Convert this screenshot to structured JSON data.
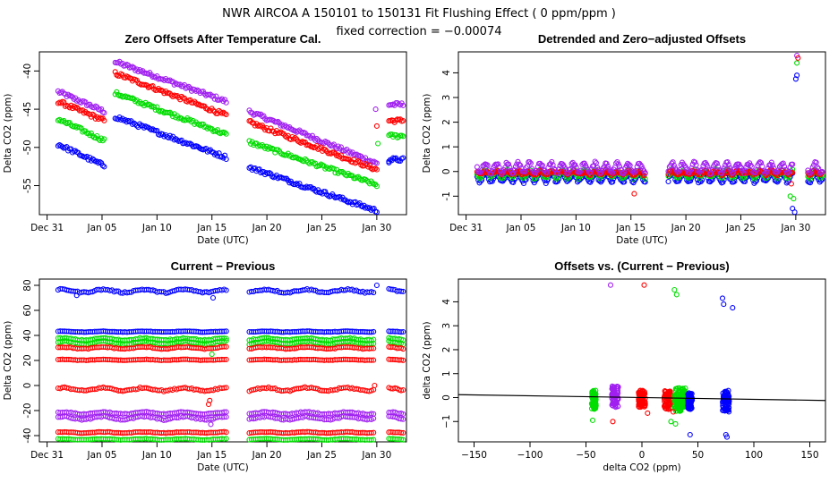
{
  "header": {
    "title": "NWR   AIRCOA A   150101 to 150131   Fit Flushing Effect ( 0 ppm/ppm )",
    "subtitle": "fixed correction = −0.00074"
  },
  "colors": {
    "blue": "#0000ff",
    "red": "#ff0000",
    "green": "#00dd00",
    "purple": "#a020f0",
    "black": "#000000"
  },
  "chart_data": [
    {
      "id": "zero_offsets",
      "type": "scatter",
      "title": "Zero Offsets After Temperature Cal.",
      "xlabel": "Date (UTC)",
      "ylabel": "Delta CO2 (ppm)",
      "xlim": [
        -1.2,
        32.2
      ],
      "ylim": [
        -58.8,
        -37.5
      ],
      "xticks": [
        {
          "v": -0.5,
          "label": "Dec 31"
        },
        {
          "v": 4.5,
          "label": "Jan 05"
        },
        {
          "v": 9.5,
          "label": "Jan 10"
        },
        {
          "v": 14.5,
          "label": "Jan 15"
        },
        {
          "v": 19.5,
          "label": "Jan 20"
        },
        {
          "v": 24.5,
          "label": "Jan 25"
        },
        {
          "v": 29.5,
          "label": "Jan 30"
        }
      ],
      "yticks": [
        {
          "v": -40,
          "label": "-40"
        },
        {
          "v": -45,
          "label": "-45"
        },
        {
          "v": -50,
          "label": "-50"
        },
        {
          "v": -55,
          "label": "-55"
        }
      ],
      "series": [
        {
          "name": "purple",
          "color": "purple",
          "segments": [
            [
              0.5,
              4.7,
              -42.7,
              -45.3
            ],
            [
              5.7,
              15.8,
              -38.8,
              -44.0
            ],
            [
              17.9,
              29.5,
              -45.3,
              -52.1
            ],
            [
              30.6,
              31.9,
              -44.4,
              -44.4
            ]
          ]
        },
        {
          "name": "red",
          "color": "red",
          "segments": [
            [
              0.5,
              4.7,
              -44.0,
              -46.5
            ],
            [
              5.7,
              15.8,
              -40.3,
              -45.8
            ],
            [
              17.9,
              29.5,
              -46.7,
              -52.9
            ],
            [
              30.6,
              31.9,
              -46.5,
              -46.5
            ]
          ]
        },
        {
          "name": "green",
          "color": "green",
          "segments": [
            [
              0.5,
              4.7,
              -46.3,
              -49.1
            ],
            [
              5.7,
              15.8,
              -42.9,
              -48.3
            ],
            [
              17.9,
              29.5,
              -49.3,
              -54.9
            ],
            [
              30.6,
              31.9,
              -48.5,
              -48.5
            ]
          ]
        },
        {
          "name": "blue",
          "color": "blue",
          "segments": [
            [
              0.5,
              4.7,
              -49.6,
              -52.4
            ],
            [
              5.7,
              15.8,
              -46.0,
              -51.3
            ],
            [
              17.9,
              29.5,
              -52.6,
              -58.3
            ],
            [
              30.6,
              31.9,
              -51.6,
              -51.6
            ]
          ]
        }
      ],
      "outliers": [
        {
          "color": "purple",
          "x": 29.4,
          "y": -45.0
        },
        {
          "color": "red",
          "x": 29.5,
          "y": -47.2
        },
        {
          "color": "green",
          "x": 29.6,
          "y": -49.5
        },
        {
          "color": "blue",
          "x": 30.6,
          "y": -52.0
        }
      ]
    },
    {
      "id": "detrended",
      "type": "scatter",
      "title": "Detrended and Zero−adjusted Offsets",
      "xlabel": "Date (UTC)",
      "ylabel": "Delta CO2 (ppm)",
      "xlim": [
        -1.2,
        32.2
      ],
      "ylim": [
        -1.75,
        4.85
      ],
      "xticks": [
        {
          "v": -0.5,
          "label": "Dec 31"
        },
        {
          "v": 4.5,
          "label": "Jan 05"
        },
        {
          "v": 9.5,
          "label": "Jan 10"
        },
        {
          "v": 14.5,
          "label": "Jan 15"
        },
        {
          "v": 19.5,
          "label": "Jan 20"
        },
        {
          "v": 24.5,
          "label": "Jan 25"
        },
        {
          "v": 29.5,
          "label": "Jan 30"
        }
      ],
      "yticks": [
        {
          "v": -1,
          "label": "-1"
        },
        {
          "v": 0,
          "label": "0"
        },
        {
          "v": 1,
          "label": "1"
        },
        {
          "v": 2,
          "label": "2"
        },
        {
          "v": 3,
          "label": "3"
        },
        {
          "v": 4,
          "label": "4"
        }
      ],
      "ranges": [
        [
          0.5,
          15.8
        ],
        [
          17.9,
          29.2
        ],
        [
          30.6,
          31.9
        ]
      ],
      "series": [
        {
          "name": "blue",
          "color": "blue",
          "base": -0.25,
          "amp": 0.18
        },
        {
          "name": "green",
          "color": "green",
          "base": -0.1,
          "amp": 0.15
        },
        {
          "name": "red",
          "color": "red",
          "base": -0.05,
          "amp": 0.06
        },
        {
          "name": "purple",
          "color": "purple",
          "base": 0.15,
          "amp": 0.2
        }
      ],
      "outliers": [
        {
          "color": "purple",
          "x": 29.6,
          "y": 4.7
        },
        {
          "color": "green",
          "x": 29.6,
          "y": 4.4
        },
        {
          "color": "red",
          "x": 29.7,
          "y": 4.6
        },
        {
          "color": "blue",
          "x": 29.6,
          "y": 3.9
        },
        {
          "color": "blue",
          "x": 29.5,
          "y": 3.75
        },
        {
          "color": "blue",
          "x": 29.2,
          "y": -1.5
        },
        {
          "color": "blue",
          "x": 29.4,
          "y": -1.65
        },
        {
          "color": "green",
          "x": 29.0,
          "y": -1.0
        },
        {
          "color": "green",
          "x": 29.3,
          "y": -1.1
        },
        {
          "color": "red",
          "x": 14.8,
          "y": -0.9
        },
        {
          "color": "red",
          "x": 29.1,
          "y": -0.5
        }
      ]
    },
    {
      "id": "current_previous",
      "type": "scatter",
      "title": "Current − Previous",
      "xlabel": "Date (UTC)",
      "ylabel": "Delta CO2 (ppm)",
      "xlim": [
        -1.2,
        32.2
      ],
      "ylim": [
        -45,
        85
      ],
      "xticks": [
        {
          "v": -0.5,
          "label": "Dec 31"
        },
        {
          "v": 4.5,
          "label": "Jan 05"
        },
        {
          "v": 9.5,
          "label": "Jan 10"
        },
        {
          "v": 14.5,
          "label": "Jan 15"
        },
        {
          "v": 19.5,
          "label": "Jan 20"
        },
        {
          "v": 24.5,
          "label": "Jan 25"
        },
        {
          "v": 29.5,
          "label": "Jan 30"
        }
      ],
      "yticks": [
        {
          "v": 80,
          "label": "80"
        },
        {
          "v": 60,
          "label": "60"
        },
        {
          "v": 40,
          "label": "40"
        },
        {
          "v": 20,
          "label": "20"
        },
        {
          "v": 0,
          "label": "0"
        },
        {
          "v": -20,
          "label": "-20"
        },
        {
          "v": -40,
          "label": "-40"
        }
      ],
      "ranges": [
        [
          0.5,
          15.8
        ],
        [
          17.9,
          29.2
        ],
        [
          30.6,
          31.9
        ]
      ],
      "bands": [
        {
          "color": "blue",
          "y": 75.5,
          "noise": 1.2
        },
        {
          "color": "blue",
          "y": 43,
          "noise": 0.3
        },
        {
          "color": "green",
          "y": 37,
          "noise": 0.8
        },
        {
          "color": "green",
          "y": 34,
          "noise": 1.2
        },
        {
          "color": "red",
          "y": 30,
          "noise": 0.7
        },
        {
          "color": "red",
          "y": 20.5,
          "noise": 0.3
        },
        {
          "color": "red",
          "y": -3,
          "noise": 1.2
        },
        {
          "color": "purple",
          "y": -22,
          "noise": 0.8
        },
        {
          "color": "purple",
          "y": -26,
          "noise": 1.2
        },
        {
          "color": "red",
          "y": -37.5,
          "noise": 0.4
        },
        {
          "color": "green",
          "y": -43,
          "noise": 0.4
        }
      ],
      "outliers": [
        {
          "color": "red",
          "x": 14.3,
          "y": -12
        },
        {
          "color": "red",
          "x": 14.2,
          "y": -15
        },
        {
          "color": "purple",
          "x": 14.4,
          "y": -31
        },
        {
          "color": "green",
          "x": 14.5,
          "y": 25
        },
        {
          "color": "blue",
          "x": 29.5,
          "y": 80
        },
        {
          "color": "blue",
          "x": 14.6,
          "y": 70
        },
        {
          "color": "blue",
          "x": 2.2,
          "y": 72
        },
        {
          "color": "red",
          "x": 29.3,
          "y": 0
        }
      ]
    },
    {
      "id": "offsets_vs_cp",
      "type": "scatter",
      "title": "Offsets vs. (Current − Previous)",
      "xlabel": "delta CO2 (ppm)",
      "ylabel": "delta CO2 (ppm)",
      "xlim": [
        -164,
        164
      ],
      "ylim": [
        -1.85,
        4.95
      ],
      "xticks": [
        {
          "v": -150,
          "label": "−150"
        },
        {
          "v": -100,
          "label": "−100"
        },
        {
          "v": -50,
          "label": "−50"
        },
        {
          "v": 0,
          "label": "0"
        },
        {
          "v": 50,
          "label": "50"
        },
        {
          "v": 100,
          "label": "100"
        },
        {
          "v": 150,
          "label": "150"
        }
      ],
      "yticks": [
        {
          "v": -1,
          "label": "−1"
        },
        {
          "v": 0,
          "label": "0"
        },
        {
          "v": 1,
          "label": "1"
        },
        {
          "v": 2,
          "label": "2"
        },
        {
          "v": 3,
          "label": "3"
        },
        {
          "v": 4,
          "label": "4"
        }
      ],
      "fit_line": {
        "x": [
          -164,
          164
        ],
        "y": [
          0.121,
          -0.121
        ],
        "color": "black"
      },
      "clusters": [
        {
          "color": "green",
          "x": -43,
          "spread": 2,
          "ylo": -0.5,
          "yhi": 0.3
        },
        {
          "color": "purple",
          "x": -24,
          "spread": 3,
          "ylo": -0.4,
          "yhi": 0.5
        },
        {
          "color": "red",
          "x": 0,
          "spread": 3,
          "ylo": -0.4,
          "yhi": 0.3
        },
        {
          "color": "red",
          "x": 23,
          "spread": 3,
          "ylo": -0.5,
          "yhi": 0.3
        },
        {
          "color": "green",
          "x": 32,
          "spread": 3,
          "ylo": -0.6,
          "yhi": 0.4
        },
        {
          "color": "green",
          "x": 37,
          "spread": 2,
          "ylo": -0.4,
          "yhi": 0.4
        },
        {
          "color": "blue",
          "x": 43,
          "spread": 2,
          "ylo": -0.5,
          "yhi": 0.2
        },
        {
          "color": "blue",
          "x": 75,
          "spread": 3,
          "ylo": -0.6,
          "yhi": 0.3
        }
      ],
      "outliers": [
        {
          "color": "purple",
          "x": -28,
          "y": 4.7
        },
        {
          "color": "red",
          "x": 2,
          "y": 4.7
        },
        {
          "color": "green",
          "x": 29,
          "y": 4.5
        },
        {
          "color": "green",
          "x": 31,
          "y": 4.3
        },
        {
          "color": "blue",
          "x": 72,
          "y": 4.15
        },
        {
          "color": "blue",
          "x": 73,
          "y": 3.9
        },
        {
          "color": "blue",
          "x": 81,
          "y": 3.75
        },
        {
          "color": "blue",
          "x": 43,
          "y": -1.55
        },
        {
          "color": "blue",
          "x": 75,
          "y": -1.55
        },
        {
          "color": "blue",
          "x": 76,
          "y": -1.65
        },
        {
          "color": "green",
          "x": -44,
          "y": -0.95
        },
        {
          "color": "red",
          "x": -26,
          "y": -1.0
        },
        {
          "color": "green",
          "x": 26,
          "y": -1.0
        },
        {
          "color": "green",
          "x": 30,
          "y": -1.1
        },
        {
          "color": "red",
          "x": 28,
          "y": -0.6
        },
        {
          "color": "red",
          "x": 5,
          "y": -0.65
        }
      ]
    }
  ]
}
